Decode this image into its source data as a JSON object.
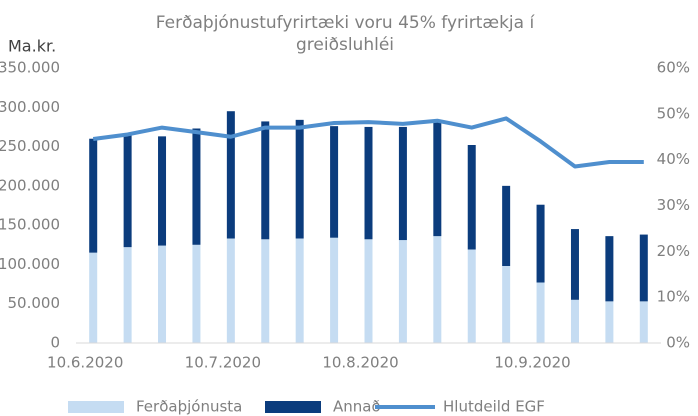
{
  "chart_data": {
    "type": "bar",
    "title": "Ferðaþjónustufyrirtæki voru 45% fyrirtækja í greiðsluhléi",
    "y_label": "Ma.kr.",
    "categories": [
      "10.6.2020",
      null,
      null,
      null,
      "10.7.2020",
      null,
      null,
      null,
      "10.8.2020",
      null,
      null,
      null,
      null,
      "10.9.2020",
      null,
      null,
      null
    ],
    "series": [
      {
        "name": "Ferðaþjónusta",
        "color": "#c5dcf2",
        "values": [
          115000,
          122000,
          124000,
          125000,
          133000,
          132000,
          133000,
          134000,
          132000,
          131000,
          136000,
          119000,
          98000,
          77000,
          55000,
          53000,
          53000
        ]
      },
      {
        "name": "Annað",
        "color": "#0b3c7d",
        "values": [
          145000,
          143000,
          139000,
          148000,
          162000,
          150000,
          151000,
          142000,
          143000,
          144000,
          146000,
          133000,
          102000,
          99000,
          90000,
          83000,
          85000
        ]
      },
      {
        "name": "Hlutdeild EGF",
        "color": "#4f8fce",
        "type": "line",
        "axis": "y2",
        "values": [
          44.5,
          45.5,
          47,
          46,
          45,
          47,
          47,
          48,
          48.2,
          47.8,
          48.5,
          47,
          49,
          44,
          38.5,
          39.5,
          39.5
        ]
      }
    ],
    "ylim": [
      0,
      350000
    ],
    "yticks": [
      0,
      {
        "value": 50000,
        "label": "50.000"
      },
      {
        "value": 100000,
        "label": "100.000"
      },
      {
        "value": 150000,
        "label": "150.000"
      },
      {
        "value": 200000,
        "label": "200.000"
      },
      {
        "value": 250000,
        "label": "250.000"
      },
      {
        "value": 300000,
        "label": "300.000"
      },
      {
        "value": 350000,
        "label": "350.000"
      }
    ],
    "y2lim": [
      0,
      60
    ],
    "y2ticks": [
      {
        "value": 0,
        "label": "0%"
      },
      {
        "value": 10,
        "label": "10%"
      },
      {
        "value": 20,
        "label": "20%"
      },
      {
        "value": 30,
        "label": "30%"
      },
      {
        "value": 40,
        "label": "40%"
      },
      {
        "value": 50,
        "label": "50%"
      },
      {
        "value": 60,
        "label": "60%"
      }
    ],
    "legend": "bottom"
  }
}
